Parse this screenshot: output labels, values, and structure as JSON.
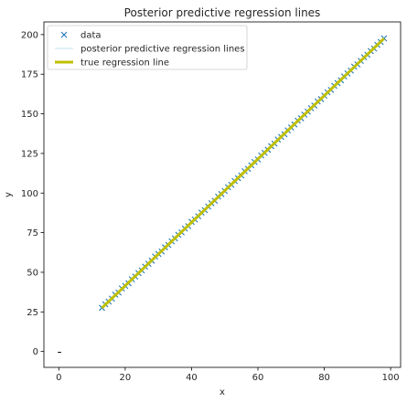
{
  "chart_data": {
    "type": "scatter",
    "title": "Posterior predictive regression lines",
    "xlabel": "x",
    "ylabel": "y",
    "xlim": [
      -4.5,
      103
    ],
    "ylim": [
      -10,
      208
    ],
    "xticks": [
      0,
      20,
      40,
      60,
      80,
      100
    ],
    "yticks": [
      0,
      25,
      50,
      75,
      100,
      125,
      150,
      175,
      200
    ],
    "grid": false,
    "legend_position": "top-left",
    "colors": {
      "data": "#1f77b4",
      "posterior": "#add8e6",
      "true_line": "#bfbf00",
      "axes": "#000000"
    },
    "legend": [
      {
        "label": "data",
        "marker": "x"
      },
      {
        "label": "posterior predictive regression lines",
        "marker": "thin-line"
      },
      {
        "label": "true regression line",
        "marker": "thick-line"
      }
    ],
    "series": [
      {
        "name": "data",
        "kind": "points",
        "x": [
          13,
          14,
          15,
          16,
          17,
          18,
          19,
          20,
          21,
          22,
          23,
          24,
          25,
          26,
          27,
          28,
          29,
          30,
          31,
          32,
          33,
          34,
          35,
          36,
          37,
          38,
          39,
          40,
          41,
          42,
          43,
          44,
          45,
          46,
          47,
          48,
          49,
          50,
          51,
          52,
          53,
          54,
          55,
          56,
          57,
          58,
          59,
          60,
          61,
          62,
          63,
          64,
          65,
          66,
          67,
          68,
          69,
          70,
          71,
          72,
          73,
          74,
          75,
          76,
          77,
          78,
          79,
          80,
          81,
          82,
          83,
          84,
          85,
          86,
          87,
          88,
          89,
          90,
          91,
          92,
          93,
          94,
          95,
          96,
          97,
          98
        ],
        "y": [
          27.6,
          29.8,
          31.5,
          33.4,
          35.9,
          37.2,
          39.8,
          41.4,
          43.1,
          45.6,
          47.3,
          49.5,
          51.2,
          53.6,
          55.4,
          57.3,
          59.9,
          61.6,
          63.1,
          65.8,
          67.2,
          69.5,
          71.4,
          73.7,
          75.2,
          77.6,
          79.1,
          81.8,
          83.3,
          85.4,
          87.7,
          89.2,
          91.5,
          93.6,
          95.1,
          97.8,
          99.4,
          101.3,
          103.7,
          105.2,
          107.6,
          109.4,
          111.1,
          113.8,
          115.3,
          117.5,
          119.6,
          121.2,
          123.7,
          125.4,
          127.3,
          129.6,
          131.2,
          133.8,
          135.5,
          137.1,
          139.6,
          141.4,
          143.3,
          145.7,
          147.2,
          149.5,
          151.4,
          153.6,
          155.2,
          157.8,
          159.3,
          161.5,
          163.6,
          165.1,
          167.7,
          169.4,
          171.2,
          173.6,
          175.5,
          177.3,
          179.8,
          181.2,
          183.4,
          185.7,
          187.3,
          189.6,
          191.2,
          193.5,
          195.4,
          197.6
        ]
      },
      {
        "name": "posterior predictive regression lines",
        "kind": "lines",
        "x_range": [
          13,
          98
        ],
        "lines": [
          {
            "slope": 2.0,
            "intercept": 1.6
          },
          {
            "slope": 2.01,
            "intercept": 1.1
          },
          {
            "slope": 1.99,
            "intercept": 2.1
          },
          {
            "slope": 2.005,
            "intercept": 1.4
          },
          {
            "slope": 1.995,
            "intercept": 1.9
          }
        ]
      },
      {
        "name": "true regression line",
        "kind": "line",
        "x": [
          13,
          98
        ],
        "y": [
          27.5,
          197.5
        ]
      }
    ]
  }
}
